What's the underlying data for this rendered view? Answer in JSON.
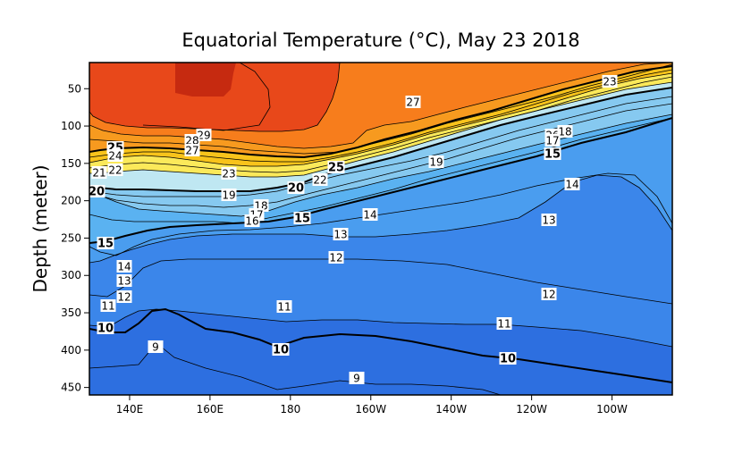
{
  "chart_data": {
    "type": "heatmap",
    "title": "Equatorial Temperature (°C), May 23 2018",
    "xlabel": "",
    "ylabel": "Depth (meter)",
    "x_ticks": [
      "140E",
      "160E",
      "180",
      "160W",
      "140W",
      "120W",
      "100W"
    ],
    "y_ticks": [
      "50",
      "100",
      "150",
      "200",
      "250",
      "300",
      "350",
      "400",
      "450"
    ],
    "xlim": [
      "130E",
      "85W"
    ],
    "ylim": [
      460,
      15
    ],
    "grid": false,
    "legend": "none",
    "isotherms": [
      {
        "level": 29,
        "labels": [
          {
            "text": "29"
          }
        ]
      },
      {
        "level": 28,
        "labels": [
          {
            "text": "28"
          }
        ]
      },
      {
        "level": 27,
        "labels": [
          {
            "text": "27"
          },
          {
            "text": "27"
          }
        ]
      },
      {
        "level": 26,
        "labels": [
          {
            "text": "26"
          }
        ]
      },
      {
        "level": 25,
        "labels": [
          {
            "text": "25"
          },
          {
            "text": "25"
          }
        ]
      },
      {
        "level": 24,
        "labels": [
          {
            "text": "24"
          }
        ]
      },
      {
        "level": 23,
        "labels": [
          {
            "text": "23"
          },
          {
            "text": "23"
          }
        ]
      },
      {
        "level": 22,
        "labels": [
          {
            "text": "22"
          },
          {
            "text": "22"
          }
        ]
      },
      {
        "level": 21,
        "labels": [
          {
            "text": "21"
          }
        ]
      },
      {
        "level": 20,
        "labels": [
          {
            "text": "20"
          },
          {
            "text": "20"
          }
        ]
      },
      {
        "level": 19,
        "labels": [
          {
            "text": "19"
          },
          {
            "text": "19"
          }
        ]
      },
      {
        "level": 18,
        "labels": [
          {
            "text": "18"
          },
          {
            "text": "18"
          }
        ]
      },
      {
        "level": 17,
        "labels": [
          {
            "text": "17"
          },
          {
            "text": "17"
          }
        ]
      },
      {
        "level": 16,
        "labels": [
          {
            "text": "16"
          }
        ]
      },
      {
        "level": 15,
        "labels": [
          {
            "text": "15"
          },
          {
            "text": "15"
          },
          {
            "text": "15"
          }
        ]
      },
      {
        "level": 14,
        "labels": [
          {
            "text": "14"
          },
          {
            "text": "14"
          },
          {
            "text": "14"
          }
        ]
      },
      {
        "level": 13,
        "labels": [
          {
            "text": "13"
          },
          {
            "text": "13"
          },
          {
            "text": "13"
          }
        ]
      },
      {
        "level": 12,
        "labels": [
          {
            "text": "12"
          },
          {
            "text": "12"
          },
          {
            "text": "12"
          }
        ]
      },
      {
        "level": 11,
        "labels": [
          {
            "text": "11"
          },
          {
            "text": "11"
          },
          {
            "text": "11"
          }
        ]
      },
      {
        "level": 10,
        "labels": [
          {
            "text": "10"
          },
          {
            "text": "10"
          },
          {
            "text": "10"
          }
        ]
      },
      {
        "level": 9,
        "labels": [
          {
            "text": "9"
          },
          {
            "text": "9"
          }
        ]
      }
    ],
    "colors": {
      "warm_max": "#c62a10",
      "t28": "#e8481a",
      "t27": "#f77d1c",
      "t25": "#f79a1f",
      "t23": "#f8c31b",
      "t21": "#fbe95a",
      "t20": "#bfe7f2",
      "t17": "#86c9f0",
      "t15": "#5ab2f1",
      "t13": "#4a9def",
      "t11": "#3b86ea",
      "cold": "#2d6fe0"
    }
  }
}
